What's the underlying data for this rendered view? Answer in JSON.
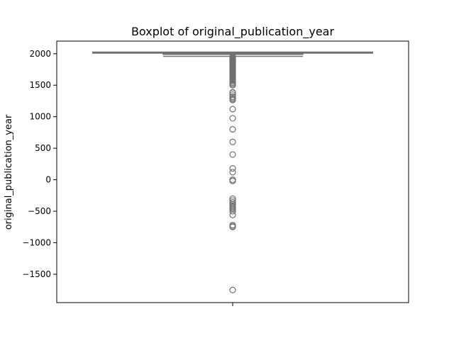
{
  "chart_data": {
    "type": "box",
    "title": "Boxplot of original_publication_year",
    "xlabel": "",
    "ylabel": "original_publication_year",
    "ylim": [
      -1950,
      2200
    ],
    "yticks": [
      2000,
      1500,
      1000,
      500,
      0,
      -500,
      -1000,
      -1500
    ],
    "grid": false,
    "x_category": "",
    "box": {
      "q1": 1990,
      "median": 2004,
      "q3": 2011,
      "whisker_low": 1958,
      "whisker_high": 2017
    },
    "outliers": [
      1957,
      1950,
      1945,
      1940,
      1935,
      1930,
      1925,
      1920,
      1915,
      1910,
      1905,
      1900,
      1895,
      1890,
      1885,
      1880,
      1875,
      1870,
      1865,
      1860,
      1855,
      1850,
      1845,
      1840,
      1835,
      1830,
      1820,
      1810,
      1800,
      1790,
      1780,
      1770,
      1760,
      1750,
      1740,
      1730,
      1720,
      1710,
      1700,
      1690,
      1680,
      1670,
      1660,
      1650,
      1640,
      1630,
      1620,
      1610,
      1600,
      1590,
      1580,
      1560,
      1540,
      1520,
      1500,
      1387,
      1380,
      1350,
      1320,
      1300,
      1280,
      1265,
      1120,
      975,
      800,
      600,
      400,
      180,
      120,
      0,
      -20,
      -300,
      -330,
      -360,
      -390,
      -410,
      -430,
      -450,
      -470,
      -500,
      -560,
      -720,
      -740,
      -750,
      -1750
    ],
    "colors": {
      "box_edge": "#707070",
      "frame": "#000000"
    }
  }
}
